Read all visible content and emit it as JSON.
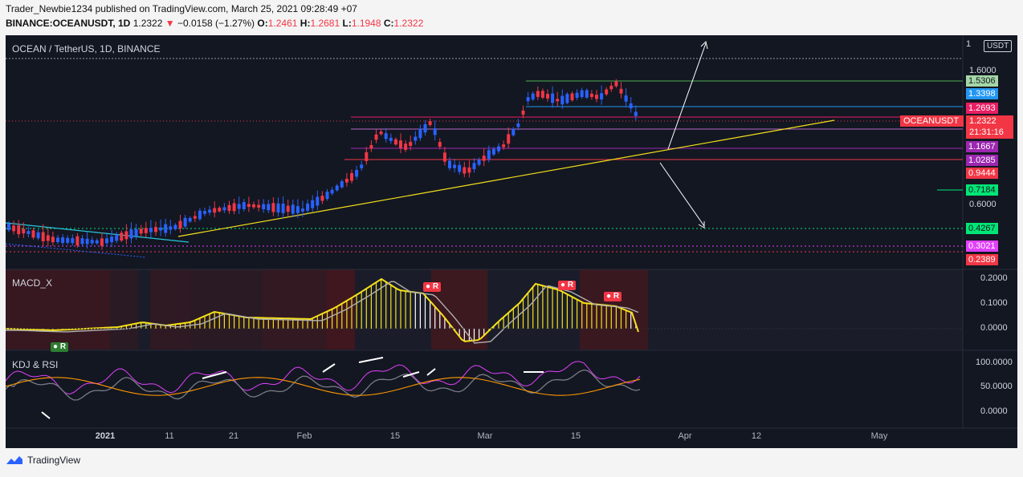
{
  "header": {
    "line1": "Trader_Newbie1234 published on TradingView.com, March 25, 2021 09:28:49 +07",
    "symbol": "BINANCE:OCEANUSDT, 1D",
    "price": "1.2322",
    "change_arrow": "▼",
    "change": "−0.0158 (−1.27%)",
    "o_label": "O:",
    "o": "1.2461",
    "h_label": "H:",
    "h": "1.2681",
    "l_label": "L:",
    "l": "1.1948",
    "c_label": "C:",
    "c": "1.2322"
  },
  "main_pane": {
    "title": "OCEAN / TetherUS, 1D, BINANCE",
    "currency": "USDT",
    "axis_ticks": [
      "1.6000",
      "0.6000"
    ],
    "price_labels": [
      {
        "text": "1.5306",
        "color": "#a5d6a7",
        "text_color": "#131722"
      },
      {
        "text": "1.3398",
        "color": "#2196f3",
        "text_color": "#ffffff"
      },
      {
        "text": "1.2693",
        "color": "#e91e63",
        "text_color": "#ffffff"
      },
      {
        "text": "1.1667",
        "color": "#9c27b0",
        "text_color": "#ffffff"
      },
      {
        "text": "1.0285",
        "color": "#9c27b0",
        "text_color": "#ffffff"
      },
      {
        "text": "0.9444",
        "color": "#f23645",
        "text_color": "#ffffff"
      },
      {
        "text": "0.7184",
        "color": "#00e676",
        "text_color": "#131722"
      },
      {
        "text": "0.4267",
        "color": "#00e676",
        "text_color": "#131722"
      },
      {
        "text": "0.3021",
        "color": "#e040fb",
        "text_color": "#ffffff"
      },
      {
        "text": "0.2389",
        "color": "#f23645",
        "text_color": "#ffffff"
      }
    ],
    "current": {
      "symbol": "OCEANUSDT",
      "price": "1.2322",
      "countdown": "21:31:16"
    }
  },
  "macd_pane": {
    "title": "MACD_X",
    "axis_ticks": [
      "0.2000",
      "0.1000",
      "0.0000"
    ],
    "signal_letter": "R"
  },
  "kdj_pane": {
    "title": "KDJ & RSI",
    "axis_ticks": [
      "100.0000",
      "50.0000",
      "0.0000"
    ]
  },
  "time_axis": [
    "2021",
    "11",
    "21",
    "Feb",
    "15",
    "Mar",
    "15",
    "Apr",
    "12",
    "May"
  ],
  "footer": {
    "brand": "TradingView"
  },
  "colors": {
    "up": "#2962ff",
    "down": "#f23645",
    "bg": "#131722",
    "trendline": "#f5e11a"
  }
}
